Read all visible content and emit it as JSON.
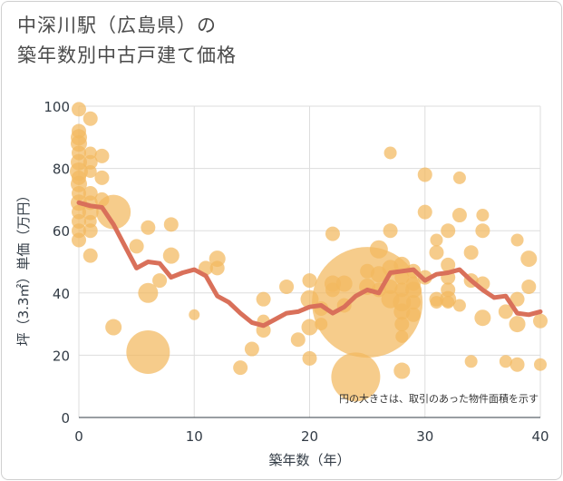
{
  "title_line1": "中深川駅（広島県）の",
  "title_line2": "築年数別中古戸建て価格",
  "chart_data": {
    "type": "scatter",
    "title": "中深川駅（広島県）の築年数別中古戸建て価格",
    "xlabel": "築年数（年）",
    "ylabel": "坪（3.3㎡）単価（万円）",
    "xlim": [
      0,
      40
    ],
    "ylim": [
      0,
      100
    ],
    "xticks": [
      0,
      10,
      20,
      30,
      40
    ],
    "yticks": [
      0,
      20,
      40,
      60,
      80,
      100
    ],
    "xtick_labels": [
      "0",
      "10",
      "20",
      "30",
      "40"
    ],
    "ytick_labels": [
      "0",
      "20",
      "40",
      "60",
      "80",
      "100"
    ],
    "annotation": "円の大きさは、取引のあった物件面積を示す",
    "colors": {
      "bubble": "#f2b95e",
      "line": "#d9705a",
      "grid": "#dddddd"
    },
    "bubbles": [
      {
        "x": 0,
        "y": 99,
        "s": 8
      },
      {
        "x": 0,
        "y": 92,
        "s": 8
      },
      {
        "x": 0,
        "y": 90,
        "s": 9
      },
      {
        "x": 0,
        "y": 88,
        "s": 9
      },
      {
        "x": 0,
        "y": 85,
        "s": 8
      },
      {
        "x": 0,
        "y": 82,
        "s": 9
      },
      {
        "x": 0,
        "y": 79,
        "s": 10
      },
      {
        "x": 0,
        "y": 77,
        "s": 8
      },
      {
        "x": 0,
        "y": 75,
        "s": 9
      },
      {
        "x": 0,
        "y": 72,
        "s": 8
      },
      {
        "x": 0,
        "y": 69,
        "s": 9
      },
      {
        "x": 0,
        "y": 66,
        "s": 8
      },
      {
        "x": 0,
        "y": 63,
        "s": 8
      },
      {
        "x": 0,
        "y": 60,
        "s": 8
      },
      {
        "x": 0,
        "y": 57,
        "s": 8
      },
      {
        "x": 1,
        "y": 96,
        "s": 8
      },
      {
        "x": 1,
        "y": 85,
        "s": 7
      },
      {
        "x": 1,
        "y": 82,
        "s": 8
      },
      {
        "x": 1,
        "y": 79,
        "s": 7
      },
      {
        "x": 1,
        "y": 72,
        "s": 8
      },
      {
        "x": 1,
        "y": 69,
        "s": 8
      },
      {
        "x": 1,
        "y": 66,
        "s": 9
      },
      {
        "x": 1,
        "y": 63,
        "s": 7
      },
      {
        "x": 1,
        "y": 60,
        "s": 8
      },
      {
        "x": 1,
        "y": 52,
        "s": 8
      },
      {
        "x": 2,
        "y": 84,
        "s": 8
      },
      {
        "x": 2,
        "y": 77,
        "s": 8
      },
      {
        "x": 2,
        "y": 70,
        "s": 8
      },
      {
        "x": 3,
        "y": 66,
        "s": 19
      },
      {
        "x": 3,
        "y": 29,
        "s": 9
      },
      {
        "x": 5,
        "y": 55,
        "s": 8
      },
      {
        "x": 6,
        "y": 61,
        "s": 8
      },
      {
        "x": 6,
        "y": 40,
        "s": 11
      },
      {
        "x": 6,
        "y": 21,
        "s": 24
      },
      {
        "x": 7,
        "y": 44,
        "s": 8
      },
      {
        "x": 8,
        "y": 62,
        "s": 8
      },
      {
        "x": 8,
        "y": 52,
        "s": 9
      },
      {
        "x": 10,
        "y": 33,
        "s": 6
      },
      {
        "x": 11,
        "y": 48,
        "s": 8
      },
      {
        "x": 12,
        "y": 51,
        "s": 9
      },
      {
        "x": 12,
        "y": 48,
        "s": 8
      },
      {
        "x": 14,
        "y": 16,
        "s": 8
      },
      {
        "x": 15,
        "y": 22,
        "s": 8
      },
      {
        "x": 16,
        "y": 38,
        "s": 8
      },
      {
        "x": 16,
        "y": 31,
        "s": 7
      },
      {
        "x": 16,
        "y": 28,
        "s": 8
      },
      {
        "x": 18,
        "y": 42,
        "s": 8
      },
      {
        "x": 19,
        "y": 25,
        "s": 8
      },
      {
        "x": 20,
        "y": 44,
        "s": 8
      },
      {
        "x": 20,
        "y": 38,
        "s": 10
      },
      {
        "x": 20,
        "y": 29,
        "s": 9
      },
      {
        "x": 20,
        "y": 19,
        "s": 8
      },
      {
        "x": 21,
        "y": 35,
        "s": 8
      },
      {
        "x": 21,
        "y": 30,
        "s": 7
      },
      {
        "x": 22,
        "y": 59,
        "s": 8
      },
      {
        "x": 22,
        "y": 43,
        "s": 9
      },
      {
        "x": 22,
        "y": 41,
        "s": 8
      },
      {
        "x": 23,
        "y": 43,
        "s": 9
      },
      {
        "x": 23,
        "y": 36,
        "s": 8
      },
      {
        "x": 24,
        "y": 13,
        "s": 27
      },
      {
        "x": 25,
        "y": 37,
        "s": 61
      },
      {
        "x": 25,
        "y": 47,
        "s": 8
      },
      {
        "x": 25,
        "y": 42,
        "s": 9
      },
      {
        "x": 26,
        "y": 54,
        "s": 10
      },
      {
        "x": 26,
        "y": 46,
        "s": 9
      },
      {
        "x": 26,
        "y": 41,
        "s": 8
      },
      {
        "x": 27,
        "y": 85,
        "s": 7
      },
      {
        "x": 27,
        "y": 60,
        "s": 8
      },
      {
        "x": 27,
        "y": 48,
        "s": 9
      },
      {
        "x": 27,
        "y": 42,
        "s": 8
      },
      {
        "x": 27,
        "y": 38,
        "s": 10
      },
      {
        "x": 28,
        "y": 49,
        "s": 9
      },
      {
        "x": 28,
        "y": 45,
        "s": 8
      },
      {
        "x": 28,
        "y": 41,
        "s": 8
      },
      {
        "x": 28,
        "y": 37,
        "s": 10
      },
      {
        "x": 28,
        "y": 34,
        "s": 9
      },
      {
        "x": 28,
        "y": 30,
        "s": 8
      },
      {
        "x": 28,
        "y": 26,
        "s": 7
      },
      {
        "x": 28,
        "y": 15,
        "s": 9
      },
      {
        "x": 29,
        "y": 47,
        "s": 8
      },
      {
        "x": 29,
        "y": 43,
        "s": 8
      },
      {
        "x": 29,
        "y": 41,
        "s": 9
      },
      {
        "x": 29,
        "y": 37,
        "s": 8
      },
      {
        "x": 29,
        "y": 33,
        "s": 8
      },
      {
        "x": 30,
        "y": 78,
        "s": 8
      },
      {
        "x": 30,
        "y": 66,
        "s": 8
      },
      {
        "x": 30,
        "y": 45,
        "s": 8
      },
      {
        "x": 31,
        "y": 57,
        "s": 7
      },
      {
        "x": 31,
        "y": 53,
        "s": 8
      },
      {
        "x": 31,
        "y": 38,
        "s": 8
      },
      {
        "x": 31,
        "y": 37,
        "s": 7
      },
      {
        "x": 32,
        "y": 60,
        "s": 8
      },
      {
        "x": 32,
        "y": 49,
        "s": 8
      },
      {
        "x": 32,
        "y": 45,
        "s": 8
      },
      {
        "x": 32,
        "y": 41,
        "s": 8
      },
      {
        "x": 32,
        "y": 38,
        "s": 9
      },
      {
        "x": 32,
        "y": 37,
        "s": 7
      },
      {
        "x": 33,
        "y": 77,
        "s": 7
      },
      {
        "x": 33,
        "y": 65,
        "s": 8
      },
      {
        "x": 33,
        "y": 36,
        "s": 7
      },
      {
        "x": 34,
        "y": 53,
        "s": 8
      },
      {
        "x": 34,
        "y": 44,
        "s": 8
      },
      {
        "x": 34,
        "y": 18,
        "s": 7
      },
      {
        "x": 35,
        "y": 65,
        "s": 7
      },
      {
        "x": 35,
        "y": 60,
        "s": 8
      },
      {
        "x": 35,
        "y": 43,
        "s": 8
      },
      {
        "x": 35,
        "y": 32,
        "s": 9
      },
      {
        "x": 37,
        "y": 34,
        "s": 8
      },
      {
        "x": 37,
        "y": 18,
        "s": 7
      },
      {
        "x": 38,
        "y": 57,
        "s": 7
      },
      {
        "x": 38,
        "y": 38,
        "s": 8
      },
      {
        "x": 38,
        "y": 30,
        "s": 9
      },
      {
        "x": 38,
        "y": 17,
        "s": 8
      },
      {
        "x": 39,
        "y": 51,
        "s": 9
      },
      {
        "x": 39,
        "y": 42,
        "s": 8
      },
      {
        "x": 40,
        "y": 31,
        "s": 8
      },
      {
        "x": 40,
        "y": 17,
        "s": 7
      }
    ],
    "trend": [
      {
        "x": 0,
        "y": 69
      },
      {
        "x": 1,
        "y": 68
      },
      {
        "x": 2,
        "y": 67.5
      },
      {
        "x": 3,
        "y": 62
      },
      {
        "x": 4,
        "y": 55
      },
      {
        "x": 5,
        "y": 48
      },
      {
        "x": 6,
        "y": 50
      },
      {
        "x": 7,
        "y": 49.5
      },
      {
        "x": 8,
        "y": 45
      },
      {
        "x": 9,
        "y": 46.5
      },
      {
        "x": 10,
        "y": 47.5
      },
      {
        "x": 11,
        "y": 45.5
      },
      {
        "x": 12,
        "y": 39
      },
      {
        "x": 13,
        "y": 37
      },
      {
        "x": 14,
        "y": 33.5
      },
      {
        "x": 15,
        "y": 30.5
      },
      {
        "x": 16,
        "y": 29.5
      },
      {
        "x": 17,
        "y": 31.5
      },
      {
        "x": 18,
        "y": 33.5
      },
      {
        "x": 19,
        "y": 34
      },
      {
        "x": 20,
        "y": 35.5
      },
      {
        "x": 21,
        "y": 36
      },
      {
        "x": 22,
        "y": 33.5
      },
      {
        "x": 23,
        "y": 35.5
      },
      {
        "x": 24,
        "y": 39
      },
      {
        "x": 25,
        "y": 41
      },
      {
        "x": 26,
        "y": 40
      },
      {
        "x": 27,
        "y": 46.5
      },
      {
        "x": 28,
        "y": 47
      },
      {
        "x": 29,
        "y": 47.5
      },
      {
        "x": 30,
        "y": 44
      },
      {
        "x": 31,
        "y": 46
      },
      {
        "x": 32,
        "y": 46.5
      },
      {
        "x": 33,
        "y": 47.5
      },
      {
        "x": 34,
        "y": 44
      },
      {
        "x": 35,
        "y": 41
      },
      {
        "x": 36,
        "y": 38.5
      },
      {
        "x": 37,
        "y": 39
      },
      {
        "x": 38,
        "y": 33.5
      },
      {
        "x": 39,
        "y": 33
      },
      {
        "x": 40,
        "y": 34
      }
    ]
  }
}
